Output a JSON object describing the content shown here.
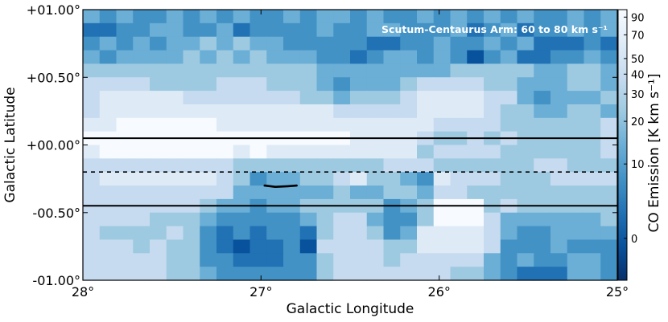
{
  "chart_data": {
    "type": "heatmap",
    "title": "",
    "xlabel": "Galactic Longitude",
    "ylabel": "Galactic Latitude",
    "xlim": [
      28.0,
      25.0
    ],
    "ylim": [
      -1.0,
      1.0
    ],
    "x_ticks": [
      {
        "value": 28,
        "label": "28°"
      },
      {
        "value": 27,
        "label": "27°"
      },
      {
        "value": 26,
        "label": "26°"
      },
      {
        "value": 25,
        "label": "25°"
      }
    ],
    "y_ticks": [
      {
        "value": 1.0,
        "label": "+01.00°"
      },
      {
        "value": 0.5,
        "label": "+00.50°"
      },
      {
        "value": 0.0,
        "label": "+00.00°"
      },
      {
        "value": -0.5,
        "label": "-00.50°"
      },
      {
        "value": -1.0,
        "label": "-01.00°"
      }
    ],
    "annotation": "Scutum-Centaurus Arm: 60 to 80 km s⁻¹",
    "colorbar": {
      "label": "CO Emission [K km s⁻¹]",
      "scale": "asinh",
      "range": [
        -5,
        100
      ],
      "ticks": [
        {
          "value": 90,
          "label": "90"
        },
        {
          "value": 70,
          "label": "70"
        },
        {
          "value": 50,
          "label": "50"
        },
        {
          "value": 40,
          "label": "40"
        },
        {
          "value": 30,
          "label": "30"
        },
        {
          "value": 20,
          "label": "20"
        },
        {
          "value": 10,
          "label": "10"
        },
        {
          "value": 0,
          "label": "0"
        }
      ],
      "colormap": [
        "#08306b",
        "#08519c",
        "#2171b5",
        "#4292c6",
        "#6baed6",
        "#9ecae1",
        "#c6dbef",
        "#deebf7",
        "#f7fbff"
      ]
    },
    "reference_lines": [
      {
        "b": 0.05,
        "style": "solid"
      },
      {
        "b": -0.2,
        "style": "dashed"
      },
      {
        "b": -0.45,
        "style": "solid"
      }
    ],
    "feature_path": [
      [
        26.98,
        -0.3
      ],
      [
        26.92,
        -0.31
      ],
      [
        26.85,
        -0.305
      ],
      [
        26.8,
        -0.3
      ]
    ],
    "grid": {
      "l_start": 28.0,
      "l_end": 25.0,
      "b_start": 1.0,
      "b_end": -1.0,
      "columns": 32,
      "rows": 20
    },
    "levels_legend": "0=#08306b 1=#08519c 2=#2171b5 3=#4292c6 4=#6baed6 5=#9ecae1 6=#c6dbef 7=#deebf7 8=#f7fbff",
    "cells": [
      "43433434343343443433434343433434",
      "22334433423333433443334234233434",
      "34343445454433333223343343422232",
      "43444454545444332344343134223343",
      "55555555555555444444445555544554",
      "66665555666555434445666655444554",
      "67777766666665545556777766434445",
      "67777777777777766666777765544554",
      "77888888777777777777766665555556",
      "88888888888888887777655656555556",
      "78888888878777777777566665555556",
      "66666666655555555566655555566555",
      "67777777653445567554376665556666",
      "66666666644444454455466555555555",
      "66666665443445555534588856555555",
      "66665554333334566433588864444445",
      "65555653232332566534777764334444",
      "66656553212231666655777763334333",
      "66666553322233566656666643433443",
      "66666554333333566666665543222443"
    ]
  }
}
